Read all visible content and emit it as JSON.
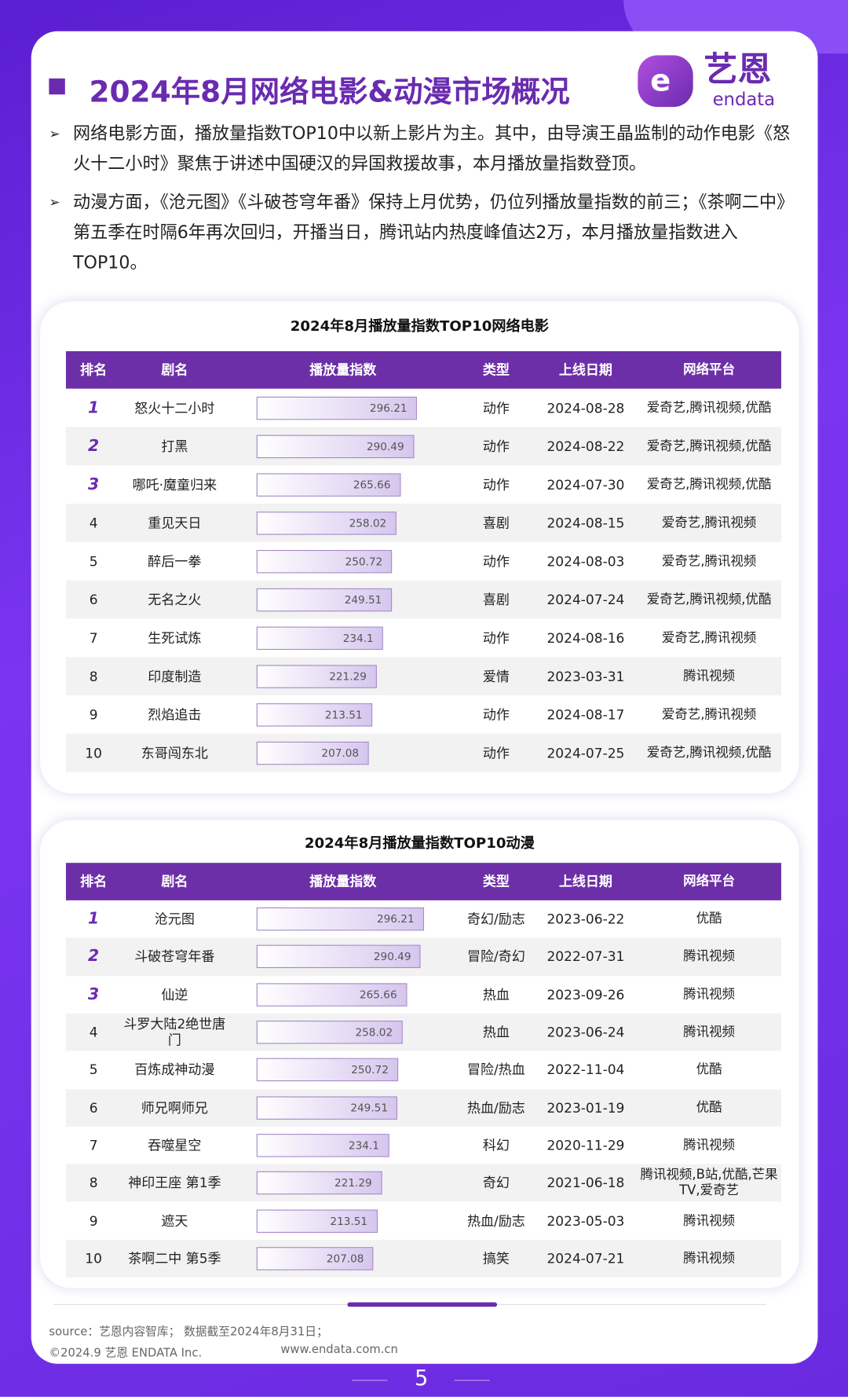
{
  "header": {
    "title": "2024年8月网络电影&动漫市场概况",
    "logo_text": "艺恩",
    "logo_sub": "endata"
  },
  "bullets": [
    "网络电影方面，播放量指数TOP10中以新上影片为主。其中，由导演王晶监制的动作电影《怒火十二小时》聚焦于讲述中国硬汉的异国救援故事，本月播放量指数登顶。",
    "动漫方面，《沧元图》《斗破苍穹年番》保持上月优势，仍位列播放量指数的前三；《茶啊二中》第五季在时隔6年再次回归，开播当日，腾讯站内热度峰值达2万，本月播放量指数进入TOP10。"
  ],
  "tables": [
    {
      "title": "2024年8月播放量指数TOP10网络电影",
      "columns": [
        "排名",
        "剧名",
        "播放量指数",
        "类型",
        "上线日期",
        "网络平台"
      ],
      "rows": [
        [
          1,
          "怒火十二小时",
          296.21,
          "动作",
          "2024-08-28",
          "爱奇艺,腾讯视频,优酷"
        ],
        [
          2,
          "打黑",
          290.49,
          "动作",
          "2024-08-22",
          "爱奇艺,腾讯视频,优酷"
        ],
        [
          3,
          "哪吒·魔童归来",
          265.66,
          "动作",
          "2024-07-30",
          "爱奇艺,腾讯视频,优酷"
        ],
        [
          4,
          "重见天日",
          258.02,
          "喜剧",
          "2024-08-15",
          "爱奇艺,腾讯视频"
        ],
        [
          5,
          "醉后一拳",
          250.72,
          "动作",
          "2024-08-03",
          "爱奇艺,腾讯视频"
        ],
        [
          6,
          "无名之火",
          249.51,
          "喜剧",
          "2024-07-24",
          "爱奇艺,腾讯视频,优酷"
        ],
        [
          7,
          "生死试炼",
          234.1,
          "动作",
          "2024-08-16",
          "爱奇艺,腾讯视频"
        ],
        [
          8,
          "印度制造",
          221.29,
          "爱情",
          "2023-03-31",
          "腾讯视频"
        ],
        [
          9,
          "烈焰追击",
          213.51,
          "动作",
          "2024-08-17",
          "爱奇艺,腾讯视频"
        ],
        [
          10,
          "东哥闯东北",
          207.08,
          "动作",
          "2024-07-25",
          "爱奇艺,腾讯视频,优酷"
        ]
      ]
    },
    {
      "title": "2024年8月播放量指数TOP10动漫",
      "columns": [
        "排名",
        "剧名",
        "播放量指数",
        "类型",
        "上线日期",
        "网络平台"
      ],
      "rows": [
        [
          1,
          "沧元图",
          296.21,
          "奇幻/励志",
          "2023-06-22",
          "优酷"
        ],
        [
          2,
          "斗破苍穹年番",
          290.49,
          "冒险/奇幻",
          "2022-07-31",
          "腾讯视频"
        ],
        [
          3,
          "仙逆",
          265.66,
          "热血",
          "2023-09-26",
          "腾讯视频"
        ],
        [
          4,
          "斗罗大陆2绝世唐门",
          258.02,
          "热血",
          "2023-06-24",
          "腾讯视频"
        ],
        [
          5,
          "百炼成神动漫",
          250.72,
          "冒险/热血",
          "2022-11-04",
          "优酷"
        ],
        [
          6,
          "师兄啊师兄",
          249.51,
          "热血/励志",
          "2023-01-19",
          "优酷"
        ],
        [
          7,
          "吞噬星空",
          234.1,
          "科幻",
          "2020-11-29",
          "腾讯视频"
        ],
        [
          8,
          "神印王座 第1季",
          221.29,
          "奇幻",
          "2021-06-18",
          "腾讯视频,B站,优酷,芒果TV,爱奇艺"
        ],
        [
          9,
          "遮天",
          213.51,
          "热血/励志",
          "2023-05-03",
          "腾讯视频"
        ],
        [
          10,
          "茶啊二中 第5季",
          207.08,
          "搞笑",
          "2024-07-21",
          "腾讯视频"
        ]
      ]
    }
  ],
  "footer": {
    "source": "source：艺恩内容智库；  数据截至2024年8月31日；",
    "copyright": "©2024.9 艺恩 ENDATA Inc.",
    "url": "www.endata.com.cn",
    "page": 5
  }
}
